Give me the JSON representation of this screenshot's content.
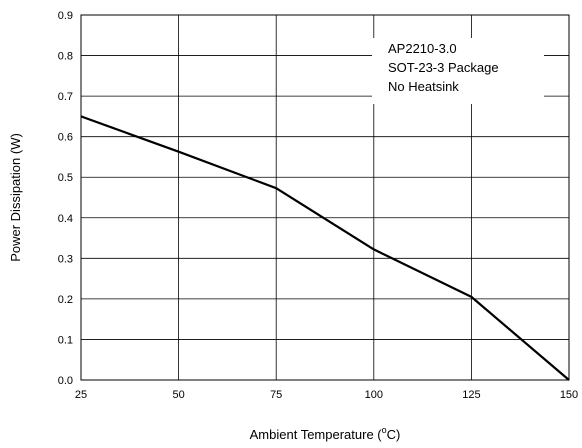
{
  "chart_data": {
    "type": "line",
    "title": "",
    "xlabel": "Ambient Temperature (",
    "xlabel_sup": "o",
    "xlabel_suffix": "C)",
    "ylabel": "Power Dissipation (W)",
    "xlim": [
      25,
      150
    ],
    "ylim": [
      0.0,
      0.9
    ],
    "x_ticks": [
      25,
      50,
      75,
      100,
      125,
      150
    ],
    "x_tick_labels": [
      "25",
      "50",
      "75",
      "100",
      "125",
      "150"
    ],
    "y_ticks": [
      0.0,
      0.1,
      0.2,
      0.3,
      0.4,
      0.5,
      0.6,
      0.7,
      0.8,
      0.9
    ],
    "y_tick_labels": [
      "0.0",
      "0.1",
      "0.2",
      "0.3",
      "0.4",
      "0.5",
      "0.6",
      "0.7",
      "0.8",
      "0.9"
    ],
    "grid": true,
    "legend_position": "top-right",
    "annotation_lines": [
      "AP2210-3.0",
      "SOT-23-3 Package",
      "No Heatsink"
    ],
    "series": [
      {
        "x": [
          25,
          50,
          75,
          100,
          125,
          150
        ],
        "y": [
          0.65,
          0.563,
          0.473,
          0.322,
          0.205,
          0.0
        ],
        "color": "#000000"
      }
    ],
    "colors": {
      "line": "#000000",
      "grid": "#000000",
      "frame": "#000000",
      "background": "#ffffff"
    }
  }
}
